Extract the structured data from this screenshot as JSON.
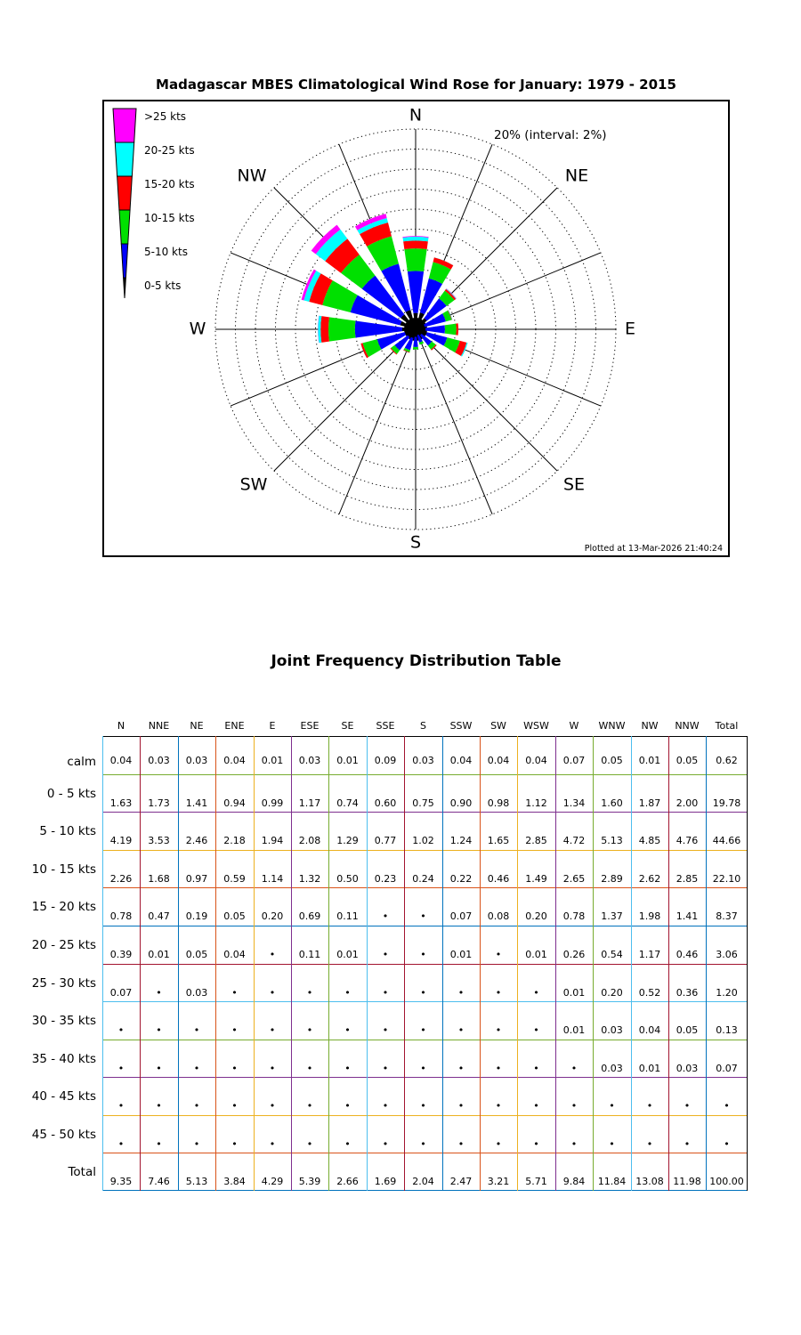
{
  "title": "Madagascar MBES Climatological Wind Rose for January: 1979 - 2015",
  "rose": {
    "max_label": "20% (interval: 2%)",
    "max_pct": 20,
    "interval_pct": 2,
    "compass_labels": [
      "N",
      "NE",
      "E",
      "SE",
      "S",
      "SW",
      "W",
      "NW"
    ],
    "plotted_at": "Plotted at 13-Mar-2026 21:40:24",
    "legend": [
      {
        "label": ">25 kts",
        "color": "#FF00FF"
      },
      {
        "label": "20-25 kts",
        "color": "#00FFFF"
      },
      {
        "label": "15-20 kts",
        "color": "#FF0000"
      },
      {
        "label": "10-15 kts",
        "color": "#00E000"
      },
      {
        "label": "5-10 kts",
        "color": "#0000FF"
      },
      {
        "label": "0-5 kts",
        "color": "#000000"
      }
    ]
  },
  "chart_data": {
    "type": "windrose",
    "units": "percent frequency",
    "title": "Madagascar MBES Climatological Wind Rose for January: 1979 - 2015",
    "ring_max": 20,
    "ring_interval": 2,
    "direction_labels": [
      "N",
      "NNE",
      "NE",
      "ENE",
      "E",
      "ESE",
      "SE",
      "SSE",
      "S",
      "SSW",
      "SW",
      "WSW",
      "W",
      "WNW",
      "NW",
      "NNW"
    ],
    "series": [
      {
        "name": "0-5 kts",
        "color": "#000000",
        "values": [
          1.63,
          1.73,
          1.41,
          0.94,
          0.99,
          1.17,
          0.74,
          0.6,
          0.75,
          0.9,
          0.98,
          1.12,
          1.34,
          1.6,
          1.87,
          2.0
        ]
      },
      {
        "name": "5-10 kts",
        "color": "#0000FF",
        "values": [
          4.19,
          3.53,
          2.46,
          2.18,
          1.94,
          2.08,
          1.29,
          0.77,
          1.02,
          1.24,
          1.65,
          2.85,
          4.72,
          5.13,
          4.85,
          4.76
        ]
      },
      {
        "name": "10-15 kts",
        "color": "#00E000",
        "values": [
          2.26,
          1.68,
          0.97,
          0.59,
          1.14,
          1.32,
          0.5,
          0.23,
          0.24,
          0.22,
          0.46,
          1.49,
          2.65,
          2.89,
          2.62,
          2.85
        ]
      },
      {
        "name": "15-20 kts",
        "color": "#FF0000",
        "values": [
          0.78,
          0.47,
          0.19,
          0.05,
          0.2,
          0.69,
          0.11,
          0,
          0,
          0.07,
          0.08,
          0.2,
          0.78,
          1.37,
          1.98,
          1.41
        ]
      },
      {
        "name": "20-25 kts",
        "color": "#00FFFF",
        "values": [
          0.39,
          0.01,
          0.05,
          0.04,
          0,
          0.11,
          0.01,
          0,
          0,
          0.01,
          0,
          0.01,
          0.26,
          0.54,
          1.17,
          0.46
        ]
      },
      {
        "name": ">25 kts",
        "color": "#FF00FF",
        "values": [
          0.07,
          0,
          0.03,
          0,
          0,
          0,
          0,
          0,
          0,
          0,
          0,
          0,
          0.02,
          0.26,
          0.57,
          0.44
        ]
      }
    ]
  },
  "table": {
    "title": "Joint Frequency Distribution Table",
    "col_headers": [
      "N",
      "NNE",
      "NE",
      "ENE",
      "E",
      "ESE",
      "SE",
      "SSE",
      "S",
      "SSW",
      "SW",
      "WSW",
      "W",
      "WNW",
      "NW",
      "NNW",
      "Total"
    ],
    "row_labels": [
      "calm",
      "0 - 5 kts",
      "5 - 10 kts",
      "10 - 15 kts",
      "15 - 20 kts",
      "20 - 25 kts",
      "25 - 30 kts",
      "30 - 35 kts",
      "35 - 40 kts",
      "40 - 45 kts",
      "45 - 50 kts",
      "Total"
    ],
    "rows": [
      [
        "0.04",
        "0.03",
        "0.03",
        "0.04",
        "0.01",
        "0.03",
        "0.01",
        "0.09",
        "0.03",
        "0.04",
        "0.04",
        "0.04",
        "0.07",
        "0.05",
        "0.01",
        "0.05",
        "0.62"
      ],
      [
        "1.63",
        "1.73",
        "1.41",
        "0.94",
        "0.99",
        "1.17",
        "0.74",
        "0.60",
        "0.75",
        "0.90",
        "0.98",
        "1.12",
        "1.34",
        "1.60",
        "1.87",
        "2.00",
        "19.78"
      ],
      [
        "4.19",
        "3.53",
        "2.46",
        "2.18",
        "1.94",
        "2.08",
        "1.29",
        "0.77",
        "1.02",
        "1.24",
        "1.65",
        "2.85",
        "4.72",
        "5.13",
        "4.85",
        "4.76",
        "44.66"
      ],
      [
        "2.26",
        "1.68",
        "0.97",
        "0.59",
        "1.14",
        "1.32",
        "0.50",
        "0.23",
        "0.24",
        "0.22",
        "0.46",
        "1.49",
        "2.65",
        "2.89",
        "2.62",
        "2.85",
        "22.10"
      ],
      [
        "0.78",
        "0.47",
        "0.19",
        "0.05",
        "0.20",
        "0.69",
        "0.11",
        "•",
        "•",
        "0.07",
        "0.08",
        "0.20",
        "0.78",
        "1.37",
        "1.98",
        "1.41",
        "8.37"
      ],
      [
        "0.39",
        "0.01",
        "0.05",
        "0.04",
        "•",
        "0.11",
        "0.01",
        "•",
        "•",
        "0.01",
        "•",
        "0.01",
        "0.26",
        "0.54",
        "1.17",
        "0.46",
        "3.06"
      ],
      [
        "0.07",
        "•",
        "0.03",
        "•",
        "•",
        "•",
        "•",
        "•",
        "•",
        "•",
        "•",
        "•",
        "0.01",
        "0.20",
        "0.52",
        "0.36",
        "1.20"
      ],
      [
        "•",
        "•",
        "•",
        "•",
        "•",
        "•",
        "•",
        "•",
        "•",
        "•",
        "•",
        "•",
        "0.01",
        "0.03",
        "0.04",
        "0.05",
        "0.13"
      ],
      [
        "•",
        "•",
        "•",
        "•",
        "•",
        "•",
        "•",
        "•",
        "•",
        "•",
        "•",
        "•",
        "•",
        "0.03",
        "0.01",
        "0.03",
        "0.07"
      ],
      [
        "•",
        "•",
        "•",
        "•",
        "•",
        "•",
        "•",
        "•",
        "•",
        "•",
        "•",
        "•",
        "•",
        "•",
        "•",
        "•",
        "•"
      ],
      [
        "•",
        "•",
        "•",
        "•",
        "•",
        "•",
        "•",
        "•",
        "•",
        "•",
        "•",
        "•",
        "•",
        "•",
        "•",
        "•",
        "•"
      ],
      [
        "9.35",
        "7.46",
        "5.13",
        "3.84",
        "4.29",
        "5.39",
        "2.66",
        "1.69",
        "2.04",
        "2.47",
        "3.21",
        "5.71",
        "9.84",
        "11.84",
        "13.08",
        "11.98",
        "100.00"
      ]
    ],
    "grid_row_colors": [
      "#000000",
      "#77AC30",
      "#7E2F8E",
      "#EDB120",
      "#D95319",
      "#0072BD",
      "#A2142F",
      "#4DBEEE",
      "#77AC30",
      "#7E2F8E",
      "#EDB120",
      "#D95319",
      "#0072BD"
    ],
    "grid_col_colors": [
      "#4DBEEE",
      "#A2142F",
      "#0072BD",
      "#D95319",
      "#EDB120",
      "#7E2F8E",
      "#77AC30",
      "#4DBEEE",
      "#A2142F",
      "#0072BD",
      "#D95319",
      "#EDB120",
      "#7E2F8E",
      "#77AC30",
      "#4DBEEE",
      "#A2142F",
      "#0072BD",
      "#000000"
    ]
  }
}
